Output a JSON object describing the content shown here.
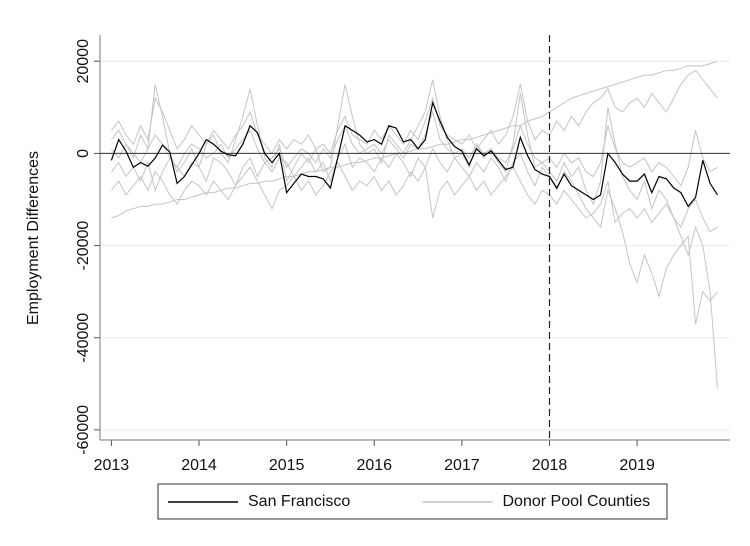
{
  "chart_data": {
    "type": "line",
    "y_label": "Employment Differences",
    "x": [
      2013,
      2013.083,
      2013.167,
      2013.25,
      2013.333,
      2013.417,
      2013.5,
      2013.583,
      2013.667,
      2013.75,
      2013.833,
      2013.917,
      2014,
      2014.083,
      2014.167,
      2014.25,
      2014.333,
      2014.417,
      2014.5,
      2014.583,
      2014.667,
      2014.75,
      2014.833,
      2014.917,
      2015,
      2015.083,
      2015.167,
      2015.25,
      2015.333,
      2015.417,
      2015.5,
      2015.583,
      2015.667,
      2015.75,
      2015.833,
      2015.917,
      2016,
      2016.083,
      2016.167,
      2016.25,
      2016.333,
      2016.417,
      2016.5,
      2016.583,
      2016.667,
      2016.75,
      2016.833,
      2016.917,
      2017,
      2017.083,
      2017.167,
      2017.25,
      2017.333,
      2017.417,
      2017.5,
      2017.583,
      2017.667,
      2017.75,
      2017.833,
      2017.917,
      2018,
      2018.083,
      2018.167,
      2018.25,
      2018.333,
      2018.417,
      2018.5,
      2018.583,
      2018.667,
      2018.75,
      2018.833,
      2018.917,
      2019,
      2019.083,
      2019.167,
      2019.25,
      2019.333,
      2019.417,
      2019.5,
      2019.583,
      2019.667,
      2019.75,
      2019.833,
      2019.917
    ],
    "series": [
      {
        "name": "San Francisco",
        "color": "#000000",
        "values": [
          -1500,
          3000,
          500,
          -3000,
          -2000,
          -2800,
          -1000,
          1800,
          300,
          -6500,
          -5000,
          -2500,
          0,
          3000,
          2000,
          500,
          -300,
          -500,
          2000,
          6000,
          4500,
          0,
          -2000,
          0,
          -8500,
          -6500,
          -4500,
          -5000,
          -5000,
          -5500,
          -7500,
          -1000,
          6000,
          5000,
          4000,
          2500,
          3000,
          2000,
          6000,
          5500,
          2500,
          3000,
          1000,
          3000,
          11000,
          7000,
          3500,
          1500,
          500,
          -2500,
          1000,
          -500,
          500,
          -1500,
          -3500,
          -3000,
          3500,
          -500,
          -3500,
          -4500,
          -5000,
          -7500,
          -4500,
          -7000,
          -8000,
          -9000,
          -10000,
          -9000,
          0,
          -2000,
          -4500,
          -6000,
          -6000,
          -4500,
          -8500,
          -5000,
          -5500,
          -7500,
          -8500,
          -11500,
          -9500,
          -1500,
          -6500,
          -9000
        ]
      },
      {
        "name": "Donor Pool Counties",
        "color": "#c4c4c4",
        "lines": [
          [
            -14000,
            -13500,
            -12500,
            -12000,
            -11500,
            -11500,
            -11000,
            -11000,
            -10500,
            -10000,
            -10000,
            -9500,
            -9000,
            -8500,
            -8500,
            -8000,
            -7500,
            -7500,
            -7000,
            -6500,
            -6500,
            -6000,
            -6000,
            -5500,
            -5000,
            -5000,
            -4500,
            -4000,
            -4000,
            -3500,
            -3000,
            -3000,
            -2500,
            -2000,
            -2000,
            -1500,
            -1000,
            -1000,
            -500,
            0,
            0,
            500,
            1000,
            1000,
            1500,
            2000,
            2000,
            2500,
            3000,
            3000,
            3500,
            4000,
            4500,
            5000,
            5500,
            6000,
            6000,
            7000,
            7500,
            8000,
            9000,
            10000,
            11000,
            12000,
            12500,
            13000,
            13500,
            14000,
            14500,
            15000,
            15500,
            16000,
            16500,
            17000,
            17000,
            17500,
            18000,
            18000,
            18500,
            19000,
            19000,
            19000,
            19500,
            20000
          ],
          [
            3000,
            5000,
            2000,
            -1000,
            4000,
            1000,
            15000,
            8000,
            0,
            -4000,
            -2000,
            1000,
            -3000,
            2000,
            4000,
            0,
            -2000,
            3000,
            8000,
            14000,
            6000,
            -1000,
            -3000,
            2000,
            -6000,
            -3000,
            0,
            -2000,
            1000,
            -4000,
            -3000,
            6000,
            15000,
            8000,
            2000,
            0,
            1000,
            -2000,
            4000,
            2000,
            0,
            3000,
            6000,
            9000,
            16000,
            8000,
            3000,
            -1000,
            0,
            -3000,
            2000,
            -1000,
            1000,
            -2000,
            -4000,
            2000,
            13000,
            4000,
            -3000,
            -2000,
            -4000,
            -6000,
            -2000,
            -5000,
            -3000,
            -8000,
            -11000,
            -6000,
            10000,
            2000,
            -5000,
            -8000,
            -10000,
            -6000,
            -12000,
            -8000,
            -10000,
            -14000,
            -18000,
            -22000,
            -16000,
            -20000,
            -30000,
            -51000
          ],
          [
            -4000,
            -2000,
            -5000,
            -3000,
            -6000,
            -2000,
            -8000,
            -4000,
            -1000,
            -3000,
            -5000,
            -2000,
            -3000,
            -6000,
            -1000,
            -2000,
            -4000,
            -7000,
            -3000,
            -1000,
            -5000,
            -2000,
            -4000,
            -1000,
            -2000,
            -5000,
            -3000,
            -1000,
            -4000,
            -2000,
            -6000,
            -1000,
            2000,
            -3000,
            -1000,
            -2000,
            -4000,
            -1000,
            -3000,
            0,
            -2000,
            -5000,
            -1000,
            -3000,
            1000,
            -2000,
            -4000,
            -1000,
            -3000,
            -5000,
            -2000,
            -4000,
            -1000,
            -3000,
            -6000,
            -2000,
            0,
            -4000,
            -7000,
            -3000,
            -5000,
            -8000,
            -4000,
            -6000,
            -9000,
            -12000,
            -14000,
            -16000,
            -8000,
            -12000,
            -17000,
            -24000,
            -28000,
            -22000,
            -26000,
            -31000,
            -25000,
            -22000,
            -20000,
            -18000,
            -37000,
            -30000,
            -32000,
            -30000
          ],
          [
            5000,
            7000,
            4000,
            2000,
            6000,
            3000,
            12000,
            9000,
            5000,
            1000,
            3000,
            6000,
            4000,
            2000,
            5000,
            3000,
            1000,
            4000,
            6000,
            9000,
            4000,
            2000,
            0,
            3000,
            1000,
            3000,
            2000,
            4000,
            1000,
            2000,
            0,
            5000,
            8000,
            4000,
            3000,
            2000,
            5000,
            3000,
            6000,
            4000,
            2000,
            5000,
            3000,
            7000,
            12000,
            6000,
            4000,
            3000,
            2000,
            4000,
            1000,
            3000,
            5000,
            2000,
            4000,
            8000,
            15000,
            7000,
            3000,
            5000,
            4000,
            7000,
            5000,
            8000,
            6000,
            9000,
            11000,
            12000,
            14000,
            10000,
            9000,
            11000,
            12000,
            10000,
            13000,
            11000,
            9000,
            12000,
            15000,
            17000,
            18000,
            16000,
            14000,
            12000
          ],
          [
            -8000,
            -6000,
            -9000,
            -7000,
            -5000,
            -8000,
            -4000,
            -6000,
            -9000,
            -11000,
            -8000,
            -6000,
            -7000,
            -9000,
            -6000,
            -8000,
            -10000,
            -7000,
            -5000,
            -3000,
            -6000,
            -9000,
            -12000,
            -8000,
            -7000,
            -5000,
            -8000,
            -6000,
            -9000,
            -7000,
            -4000,
            -2000,
            -5000,
            -8000,
            -6000,
            -7000,
            -5000,
            -8000,
            -6000,
            -9000,
            -7000,
            -4000,
            -6000,
            -3000,
            -14000,
            -8000,
            -6000,
            -9000,
            -7000,
            -5000,
            -8000,
            -6000,
            -9000,
            -7000,
            -5000,
            -3000,
            -6000,
            -9000,
            -11000,
            -8000,
            -9000,
            -11000,
            -8000,
            -10000,
            -12000,
            -14000,
            -13000,
            -11000,
            -6000,
            -15000,
            -13000,
            -12000,
            -14000,
            -12000,
            -15000,
            -13000,
            -11000,
            -14000,
            -16000,
            -12000,
            -10000,
            -14000,
            -17000,
            -16000
          ],
          [
            1000,
            -1000,
            2000,
            0,
            -2000,
            1000,
            4000,
            2000,
            -1000,
            -3000,
            0,
            2000,
            1000,
            -1000,
            0,
            2000,
            -1000,
            1000,
            3000,
            5000,
            1000,
            -2000,
            -1000,
            1000,
            -3000,
            -1000,
            1000,
            0,
            -2000,
            1000,
            -1000,
            3000,
            6000,
            2000,
            0,
            1000,
            2000,
            0,
            3000,
            1000,
            -1000,
            2000,
            1000,
            4000,
            9000,
            3000,
            1000,
            0,
            1000,
            -1000,
            2000,
            0,
            1000,
            -1000,
            -2000,
            1000,
            6000,
            2000,
            -1000,
            -2000,
            -1000,
            -3000,
            0,
            -2000,
            -1000,
            -4000,
            -5000,
            -2000,
            6000,
            1000,
            -2000,
            -3000,
            -2000,
            -1000,
            -4000,
            -2000,
            -3000,
            -5000,
            -7000,
            -3000,
            5000,
            -1000,
            -4000,
            -3000
          ]
        ]
      }
    ],
    "xlim": [
      2012.87,
      2020.06
    ],
    "xticks": [
      2013,
      2014,
      2015,
      2016,
      2017,
      2018,
      2019
    ],
    "ylim": [
      -62200,
      25700
    ],
    "yticks": [
      -60000,
      -40000,
      -20000,
      0,
      20000
    ],
    "grid": true,
    "vline": 2018,
    "hline": 0,
    "legend": "bottom"
  }
}
